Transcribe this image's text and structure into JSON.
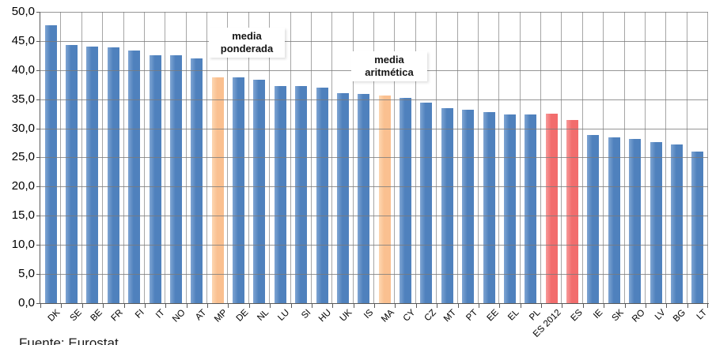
{
  "chart_data": {
    "type": "bar",
    "title": "",
    "xlabel": "",
    "ylabel": "",
    "ylim": [
      0,
      50
    ],
    "ytick_step": 5,
    "ytick_labels": [
      "0,0",
      "5,0",
      "10,0",
      "15,0",
      "20,0",
      "25,0",
      "30,0",
      "35,0",
      "40,0",
      "45,0",
      "50,0"
    ],
    "decimal_style": "comma",
    "grid": "horizontal and vertical gray gridlines, horizontal lines drawn over bars",
    "legend": "none",
    "categories": [
      "DK",
      "SE",
      "BE",
      "FR",
      "FI",
      "IT",
      "NO",
      "AT",
      "MP",
      "DE",
      "NL",
      "LU",
      "SI",
      "HU",
      "UK",
      "IS",
      "MA",
      "CY",
      "CZ",
      "MT",
      "PT",
      "EE",
      "EL",
      "PL",
      "ES 2012",
      "ES",
      "IE",
      "SK",
      "RO",
      "LV",
      "BG",
      "LT"
    ],
    "bars": [
      {
        "label": "DK",
        "value": 47.7,
        "color": "blue"
      },
      {
        "label": "SE",
        "value": 44.3,
        "color": "blue"
      },
      {
        "label": "BE",
        "value": 44.1,
        "color": "blue"
      },
      {
        "label": "FR",
        "value": 43.9,
        "color": "blue"
      },
      {
        "label": "FI",
        "value": 43.4,
        "color": "blue"
      },
      {
        "label": "IT",
        "value": 42.5,
        "color": "blue"
      },
      {
        "label": "NO",
        "value": 42.5,
        "color": "blue"
      },
      {
        "label": "AT",
        "value": 42.0,
        "color": "blue"
      },
      {
        "label": "MP",
        "value": 38.8,
        "color": "orange"
      },
      {
        "label": "DE",
        "value": 38.7,
        "color": "blue"
      },
      {
        "label": "NL",
        "value": 38.4,
        "color": "blue"
      },
      {
        "label": "LU",
        "value": 37.2,
        "color": "blue"
      },
      {
        "label": "SI",
        "value": 37.2,
        "color": "blue"
      },
      {
        "label": "HU",
        "value": 37.0,
        "color": "blue"
      },
      {
        "label": "UK",
        "value": 36.1,
        "color": "blue"
      },
      {
        "label": "IS",
        "value": 35.9,
        "color": "blue"
      },
      {
        "label": "MA",
        "value": 35.7,
        "color": "orange"
      },
      {
        "label": "CY",
        "value": 35.2,
        "color": "blue"
      },
      {
        "label": "CZ",
        "value": 34.4,
        "color": "blue"
      },
      {
        "label": "MT",
        "value": 33.5,
        "color": "blue"
      },
      {
        "label": "PT",
        "value": 33.2,
        "color": "blue"
      },
      {
        "label": "EE",
        "value": 32.8,
        "color": "blue"
      },
      {
        "label": "EL",
        "value": 32.4,
        "color": "blue"
      },
      {
        "label": "PL",
        "value": 32.4,
        "color": "blue"
      },
      {
        "label": "ES 2012",
        "value": 32.5,
        "color": "red"
      },
      {
        "label": "ES",
        "value": 31.4,
        "color": "red"
      },
      {
        "label": "IE",
        "value": 28.9,
        "color": "blue"
      },
      {
        "label": "SK",
        "value": 28.5,
        "color": "blue"
      },
      {
        "label": "RO",
        "value": 28.2,
        "color": "blue"
      },
      {
        "label": "LV",
        "value": 27.6,
        "color": "blue"
      },
      {
        "label": "BG",
        "value": 27.2,
        "color": "blue"
      },
      {
        "label": "LT",
        "value": 26.0,
        "color": "blue"
      }
    ],
    "colors": {
      "blue": "#4F81BD",
      "orange": "#FAC090",
      "red": "#F26D6D"
    },
    "annotations": [
      {
        "lines": [
          "media",
          "ponderada"
        ],
        "target": "MP"
      },
      {
        "lines": [
          "media",
          "aritmética"
        ],
        "target": "MA"
      }
    ],
    "caption": "Fuente: Eurostat"
  }
}
